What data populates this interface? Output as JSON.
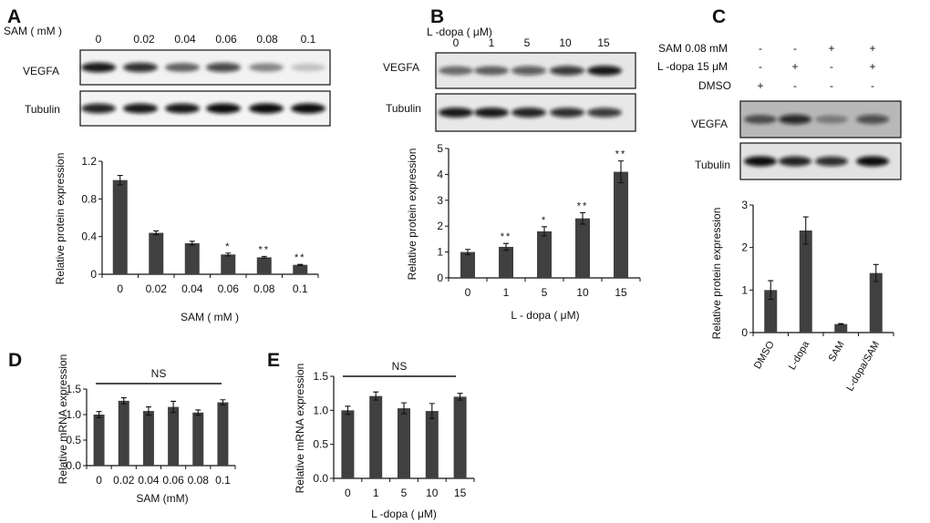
{
  "panels": {
    "A": {
      "letter": "A",
      "treatment_label": "SAM ( mM )",
      "lanes": [
        "0",
        "0.02",
        "0.04",
        "0.06",
        "0.08",
        "0.1"
      ],
      "blot_rows": [
        "VEGFA",
        "Tubulin"
      ]
    },
    "B": {
      "letter": "B",
      "treatment_label": "L -dopa ( μM)",
      "lanes": [
        "0",
        "1",
        "5",
        "10",
        "15"
      ],
      "blot_rows": [
        "VEGFA",
        "Tubulin"
      ]
    },
    "C": {
      "letter": "C",
      "conditions": [
        {
          "label": "SAM 0.08 mM",
          "signs": [
            "-",
            "-",
            "+",
            "+"
          ]
        },
        {
          "label": "L -dopa 15 μM",
          "signs": [
            "-",
            "+",
            "-",
            "+"
          ]
        },
        {
          "label": "DMSO",
          "signs": [
            "+",
            "-",
            "-",
            "-"
          ]
        }
      ],
      "blot_rows": [
        "VEGFA",
        "Tubulin"
      ]
    },
    "D": {
      "letter": "D"
    },
    "E": {
      "letter": "E"
    }
  },
  "chart_data": [
    {
      "id": "A",
      "type": "bar",
      "categories": [
        "0",
        "0.02",
        "0.04",
        "0.06",
        "0.08",
        "0.1"
      ],
      "values": [
        1.0,
        0.44,
        0.33,
        0.21,
        0.18,
        0.1
      ],
      "errors": [
        0.05,
        0.02,
        0.02,
        0.015,
        0.01,
        0.005
      ],
      "annotations": [
        "",
        "",
        "",
        "*",
        "**",
        "**"
      ],
      "xlabel": "SAM ( mM )",
      "ylabel": "Relative protein expression",
      "ylim": [
        0,
        1.2
      ],
      "yticks": [
        "0",
        "0.4",
        "0.8",
        "1.2"
      ],
      "ytick_values": [
        0,
        0.4,
        0.8,
        1.2
      ],
      "bar_color": "#404040"
    },
    {
      "id": "B",
      "type": "bar",
      "categories": [
        "0",
        "1",
        "5",
        "10",
        "15"
      ],
      "values": [
        1.0,
        1.2,
        1.8,
        2.3,
        4.1
      ],
      "errors": [
        0.1,
        0.13,
        0.18,
        0.22,
        0.42
      ],
      "annotations": [
        "",
        "**",
        "*",
        "**",
        "**"
      ],
      "xlabel": "L - dopa ( μM)",
      "ylabel": "Relative protein expression",
      "ylim": [
        0,
        5
      ],
      "yticks": [
        "0",
        "1",
        "2",
        "3",
        "4",
        "5"
      ],
      "ytick_values": [
        0,
        1,
        2,
        3,
        4,
        5
      ],
      "bar_color": "#404040"
    },
    {
      "id": "C",
      "type": "bar",
      "categories": [
        "DMSO",
        "L-dopa",
        "SAM",
        "L-dopa/SAM"
      ],
      "values": [
        1.0,
        2.4,
        0.2,
        1.4
      ],
      "errors": [
        0.22,
        0.32,
        0.01,
        0.2
      ],
      "annotations": [
        "",
        "",
        "",
        ""
      ],
      "xlabel": "",
      "ylabel": "Relative protein expression",
      "ylim": [
        0,
        3
      ],
      "yticks": [
        "0",
        "1",
        "2",
        "3"
      ],
      "ytick_values": [
        0,
        1,
        2,
        3
      ],
      "bar_color": "#404040"
    },
    {
      "id": "D",
      "type": "bar",
      "categories": [
        "0",
        "0.02",
        "0.04",
        "0.06",
        "0.08",
        "0.1"
      ],
      "values": [
        1.0,
        1.27,
        1.07,
        1.15,
        1.04,
        1.24
      ],
      "errors": [
        0.06,
        0.06,
        0.08,
        0.11,
        0.05,
        0.05
      ],
      "annotations": [
        "",
        "",
        "",
        "",
        "",
        ""
      ],
      "significance": "NS",
      "xlabel": "SAM (mM)",
      "ylabel": "Relative mRNA expression",
      "ylim": [
        0,
        1.5
      ],
      "yticks": [
        "0.0",
        "0.5",
        "1.0",
        "1.5"
      ],
      "ytick_values": [
        0,
        0.5,
        1.0,
        1.5
      ],
      "bar_color": "#404040"
    },
    {
      "id": "E",
      "type": "bar",
      "categories": [
        "0",
        "1",
        "5",
        "10",
        "15"
      ],
      "values": [
        1.0,
        1.21,
        1.03,
        0.99,
        1.2
      ],
      "errors": [
        0.06,
        0.06,
        0.08,
        0.11,
        0.05
      ],
      "annotations": [
        "",
        "",
        "",
        "",
        ""
      ],
      "significance": "NS",
      "xlabel": "L -dopa ( μM)",
      "ylabel": "Relative mRNA expression",
      "ylim": [
        0,
        1.5
      ],
      "yticks": [
        "0.0",
        "0.5",
        "1.0",
        "1.5"
      ],
      "ytick_values": [
        0,
        0.5,
        1.0,
        1.5
      ],
      "bar_color": "#404040"
    }
  ]
}
